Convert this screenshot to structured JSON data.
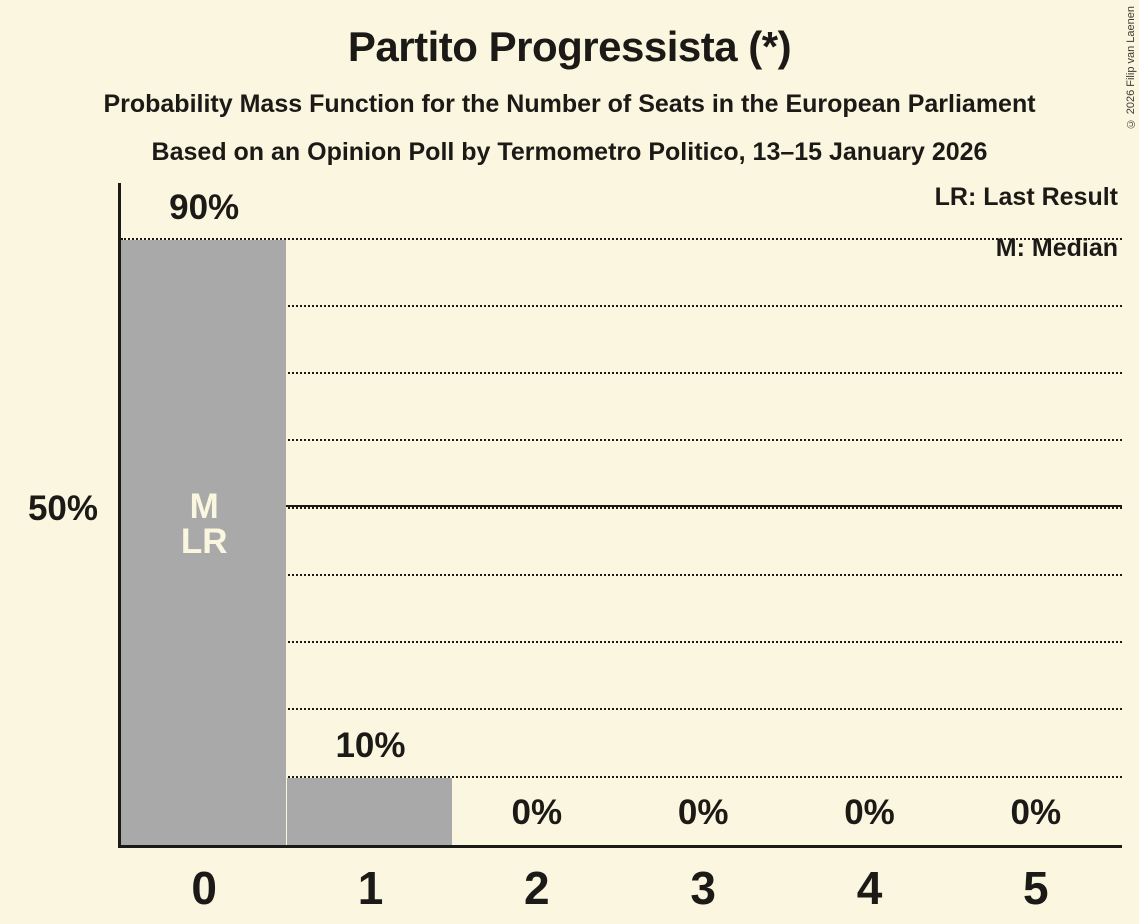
{
  "title": "Partito Progressista (*)",
  "subtitle": "Probability Mass Function for the Number of Seats in the European Parliament",
  "poll_note": "Based on an Opinion Poll by Termometro Politico, 13–15 January 2026",
  "copyright": "© 2026 Filip van Laenen",
  "legend": {
    "last_result": "LR: Last Result",
    "median": "M: Median"
  },
  "colors": {
    "background": "#FBF6DF",
    "bar": "#A9A9A9",
    "text": "#1B1A17",
    "bar_label": "#FBF6DF"
  },
  "chart_data": {
    "type": "bar",
    "title": "Partito Progressista (*)",
    "categories": [
      "0",
      "1",
      "2",
      "3",
      "4",
      "5"
    ],
    "values": [
      90,
      10,
      0,
      0,
      0,
      0
    ],
    "value_labels": [
      "90%",
      "10%",
      "0%",
      "0%",
      "0%",
      "0%"
    ],
    "ylabel": "",
    "xlabel": "",
    "ylim": [
      0,
      98
    ],
    "grid": "dotted horizontal lines every 10%",
    "gridlines_pct": [
      10,
      20,
      30,
      40,
      50,
      60,
      70,
      80,
      90
    ],
    "solid_line_pct": 50,
    "y_tick_labels": [
      {
        "pct": 50,
        "label": "50%"
      }
    ],
    "bar_annotations": [
      [
        "M",
        "LR"
      ],
      [],
      [],
      [],
      [],
      []
    ],
    "median_seats": "0",
    "last_result_seats": "0",
    "legend_position": "top-right"
  }
}
